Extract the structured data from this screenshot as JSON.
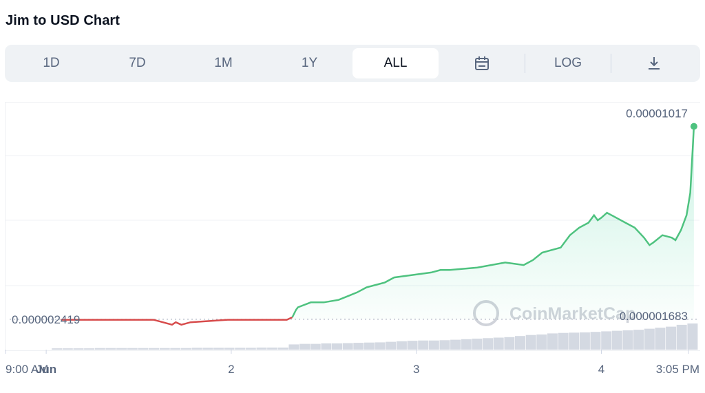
{
  "title": "Jim to USD Chart",
  "toolbar": {
    "ranges": [
      "1D",
      "7D",
      "1M",
      "1Y",
      "ALL"
    ],
    "active": "ALL",
    "log_label": "LOG",
    "calendar_icon": "calendar-icon",
    "download_icon": "download-icon"
  },
  "colors": {
    "up": "#16c784",
    "down": "#ea3943",
    "up_line": "#4ec27f",
    "down_line": "#d74b4b",
    "volume": "#d4d9e2"
  },
  "watermark": "CoinMarketCap",
  "chart_data": {
    "type": "line",
    "title": "Jim to USD Chart",
    "x_ticks": [
      "9:00 AM",
      "Jun",
      "2",
      "3",
      "4",
      "3:05 PM"
    ],
    "x_tick_pos": [
      0,
      0.22,
      1.22,
      2.22,
      3.22,
      3.69
    ],
    "x_range": [
      0,
      3.75
    ],
    "y_range": [
      1.2e-06,
      1.11e-05
    ],
    "baseline": 2.419e-06,
    "labels": {
      "last": "0.00001017",
      "baseline": "0.000002419",
      "volume_max": "0.000001683"
    },
    "series": [
      {
        "x": [
          0.3,
          0.5,
          0.7,
          0.8,
          0.85,
          0.9,
          0.92,
          0.95,
          1.0,
          1.2,
          1.4,
          1.52,
          1.55,
          1.57,
          1.58,
          1.65,
          1.72,
          1.8,
          1.9,
          1.95,
          2.0,
          2.05,
          2.1,
          2.2,
          2.3,
          2.35,
          2.4,
          2.55,
          2.7,
          2.8,
          2.85,
          2.9,
          3.0,
          3.05,
          3.1,
          3.15,
          3.18,
          3.2,
          3.22,
          3.25,
          3.3,
          3.35,
          3.4,
          3.45,
          3.48,
          3.5,
          3.55,
          3.6,
          3.62,
          3.65,
          3.68,
          3.7,
          3.72
        ],
        "y": [
          2.4e-06,
          2.4e-06,
          2.4e-06,
          2.4e-06,
          2.3e-06,
          2.2e-06,
          2.3e-06,
          2.2e-06,
          2.3e-06,
          2.4e-06,
          2.4e-06,
          2.4e-06,
          2.5e-06,
          2.8e-06,
          2.9e-06,
          3.1e-06,
          3.1e-06,
          3.2e-06,
          3.5e-06,
          3.7e-06,
          3.8e-06,
          3.9e-06,
          4.1e-06,
          4.2e-06,
          4.3e-06,
          4.4e-06,
          4.4e-06,
          4.5e-06,
          4.7e-06,
          4.6e-06,
          4.8e-06,
          5.1e-06,
          5.3e-06,
          5.8e-06,
          6.1e-06,
          6.3e-06,
          6.6e-06,
          6.4e-06,
          6.5e-06,
          6.7e-06,
          6.5e-06,
          6.3e-06,
          6.1e-06,
          5.7e-06,
          5.4e-06,
          5.5e-06,
          5.8e-06,
          5.7e-06,
          5.6e-06,
          6e-06,
          6.6e-06,
          7.5e-06,
          1.017e-05
        ]
      }
    ],
    "volume": [
      0.05,
      0.05,
      0.05,
      0.05,
      0.06,
      0.06,
      0.06,
      0.06,
      0.06,
      0.06,
      0.06,
      0.06,
      0.06,
      0.07,
      0.07,
      0.07,
      0.07,
      0.07,
      0.07,
      0.08,
      0.08,
      0.08,
      0.2,
      0.22,
      0.22,
      0.24,
      0.24,
      0.25,
      0.26,
      0.27,
      0.28,
      0.3,
      0.32,
      0.34,
      0.35,
      0.35,
      0.36,
      0.38,
      0.4,
      0.42,
      0.44,
      0.46,
      0.48,
      0.52,
      0.56,
      0.58,
      0.62,
      0.64,
      0.65,
      0.66,
      0.68,
      0.7,
      0.72,
      0.74,
      0.76,
      0.8,
      0.84,
      0.88,
      0.95,
      1.0
    ]
  }
}
